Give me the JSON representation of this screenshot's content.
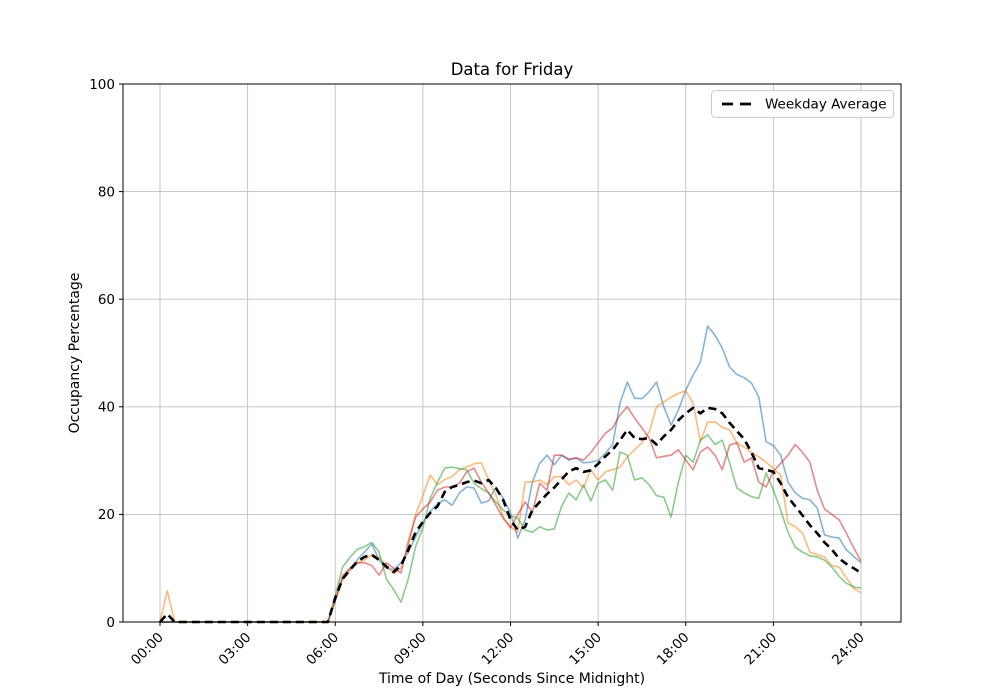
{
  "chart_data": {
    "type": "line",
    "title": "Data for Friday",
    "xlabel": "Time of Day (Seconds Since Midnight)",
    "ylabel": "Occupancy Percentage",
    "grid": true,
    "grid_color": "#c0c0c0",
    "spine_color": "#000000",
    "background_color": "#ffffff",
    "xlim_hours": [
      0,
      24
    ],
    "ylim": [
      0,
      100
    ],
    "y_ticks": [
      0,
      20,
      40,
      60,
      80,
      100
    ],
    "x_tick_hours": [
      0,
      3,
      6,
      9,
      12,
      15,
      18,
      21,
      24
    ],
    "x_tick_labels": [
      "00:00",
      "03:00",
      "06:00",
      "09:00",
      "12:00",
      "15:00",
      "18:00",
      "21:00",
      "24:00"
    ],
    "x_tick_label_rotation_deg": 45,
    "legend": {
      "position": "upper right",
      "entries": [
        {
          "label": "Weekday Average",
          "line_style": "dashed",
          "line_color": "#000000"
        }
      ]
    },
    "sample_interval_hours": 0.25,
    "series": [
      {
        "name": "friday-series-blue",
        "color": "#1f77b4",
        "opacity": 0.55,
        "width": 1.6,
        "dash": "",
        "values": [
          0,
          0,
          0,
          0,
          0,
          0,
          0,
          0,
          0,
          0,
          0,
          0,
          0,
          0,
          0,
          0,
          0,
          0,
          0,
          0,
          0,
          0,
          0,
          0,
          4.0,
          8.2,
          9.8,
          11.5,
          13.0,
          14.5,
          11.5,
          10.0,
          9.7,
          11.0,
          13.0,
          15.8,
          18.5,
          20.5,
          22.0,
          22.7,
          21.7,
          24.0,
          25.1,
          24.9,
          22.1,
          22.5,
          25.1,
          23.0,
          20.3,
          15.6,
          19.0,
          26.0,
          29.5,
          31.0,
          29.2,
          31.0,
          30.1,
          30.5,
          29.6,
          29.7,
          30.0,
          31.4,
          33.0,
          40.7,
          44.6,
          41.6,
          41.5,
          42.8,
          44.6,
          40.0,
          36.6,
          39.4,
          43.1,
          45.9,
          48.3,
          55.0,
          53.3,
          50.9,
          47.4,
          46.0,
          45.4,
          44.4,
          41.8,
          33.5,
          32.8,
          31.0,
          26.0,
          24.0,
          23.0,
          22.7,
          21.2,
          16.2,
          15.8,
          15.6,
          13.4,
          12.2,
          11.0
        ]
      },
      {
        "name": "friday-series-orange",
        "color": "#ff7f0e",
        "opacity": 0.55,
        "width": 1.6,
        "dash": "",
        "values": [
          0,
          5.8,
          0,
          0,
          0,
          0,
          0,
          0,
          0,
          0,
          0,
          0,
          0,
          0,
          0,
          0,
          0,
          0,
          0,
          0,
          0,
          0,
          0,
          0,
          4.2,
          8.0,
          9.5,
          11.0,
          11.5,
          12.5,
          12.0,
          10.5,
          9.0,
          10.0,
          14.0,
          20.0,
          23.5,
          27.3,
          25.5,
          26.5,
          27.0,
          28.3,
          28.8,
          29.4,
          29.6,
          26.4,
          23.6,
          19.5,
          17.7,
          16.7,
          26.0,
          26.0,
          26.4,
          25.5,
          27.0,
          27.0,
          25.5,
          26.4,
          24.9,
          28.3,
          26.4,
          27.9,
          28.3,
          28.8,
          30.7,
          32.0,
          33.3,
          35.3,
          40.0,
          40.9,
          41.8,
          42.5,
          43.0,
          40.7,
          33.5,
          37.2,
          37.2,
          36.2,
          35.7,
          33.3,
          32.5,
          31.5,
          30.7,
          29.7,
          28.5,
          27.3,
          18.4,
          17.7,
          16.5,
          13.0,
          12.5,
          12.1,
          10.5,
          10.2,
          8.2,
          6.3,
          5.4
        ]
      },
      {
        "name": "friday-series-green",
        "color": "#2ca02c",
        "opacity": 0.55,
        "width": 1.6,
        "dash": "",
        "values": [
          0,
          0,
          0,
          0,
          0,
          0,
          0,
          0,
          0,
          0,
          0,
          0,
          0,
          0,
          0,
          0,
          0,
          0,
          0,
          0,
          0,
          0,
          0,
          0,
          5.0,
          10.2,
          12.0,
          13.5,
          14.0,
          14.8,
          13.0,
          8.0,
          6.0,
          3.7,
          8.0,
          14.0,
          17.5,
          23.0,
          26.0,
          28.6,
          28.8,
          28.5,
          28.3,
          25.8,
          24.8,
          24.0,
          22.3,
          20.8,
          19.8,
          19.3,
          17.1,
          16.7,
          17.7,
          17.1,
          17.3,
          21.5,
          24.0,
          22.7,
          25.5,
          22.5,
          25.8,
          26.4,
          24.5,
          31.6,
          31.0,
          26.4,
          26.8,
          25.5,
          23.5,
          23.2,
          19.5,
          26.0,
          31.0,
          29.7,
          33.8,
          34.8,
          33.0,
          33.8,
          29.6,
          24.9,
          24.0,
          23.3,
          23.0,
          27.7,
          24.5,
          20.8,
          16.7,
          13.9,
          13.0,
          12.3,
          12.1,
          11.5,
          10.2,
          8.5,
          7.2,
          6.5,
          6.3
        ]
      },
      {
        "name": "friday-series-red",
        "color": "#d62728",
        "opacity": 0.55,
        "width": 1.6,
        "dash": "",
        "values": [
          0,
          0,
          0,
          0,
          0,
          0,
          0,
          0,
          0,
          0,
          0,
          0,
          0,
          0,
          0,
          0,
          0,
          0,
          0,
          0,
          0,
          0,
          0,
          0,
          4.0,
          8.6,
          10.0,
          11.0,
          11.0,
          10.5,
          8.7,
          11.0,
          10.0,
          9.1,
          15.0,
          19.5,
          21.0,
          22.3,
          24.5,
          25.1,
          25.1,
          25.8,
          27.9,
          28.6,
          26.0,
          24.0,
          21.7,
          19.3,
          17.5,
          20.0,
          22.3,
          20.4,
          25.8,
          24.5,
          31.0,
          31.0,
          30.3,
          30.5,
          30.1,
          31.5,
          33.3,
          35.1,
          36.1,
          38.5,
          40.0,
          37.9,
          36.1,
          34.2,
          30.5,
          30.8,
          31.0,
          32.0,
          30.1,
          28.3,
          31.6,
          32.5,
          31.0,
          28.3,
          32.9,
          33.3,
          29.7,
          30.5,
          26.0,
          25.1,
          28.0,
          29.5,
          31.0,
          33.0,
          31.5,
          29.7,
          24.5,
          21.0,
          20.0,
          19.0,
          16.5,
          13.8,
          11.3
        ]
      },
      {
        "name": "weekday-average",
        "color": "#000000",
        "opacity": 1,
        "width": 2.6,
        "dash": "8 5",
        "values": [
          0,
          1.5,
          0,
          0,
          0,
          0,
          0,
          0,
          0,
          0,
          0,
          0,
          0,
          0,
          0,
          0,
          0,
          0,
          0,
          0,
          0,
          0,
          0,
          0,
          4.5,
          8.0,
          9.7,
          11.2,
          12.1,
          12.5,
          11.5,
          10.3,
          9.3,
          10.5,
          13.4,
          16.7,
          18.6,
          20.3,
          21.5,
          24.2,
          25.1,
          25.5,
          26.0,
          26.3,
          25.8,
          26.4,
          24.9,
          22.7,
          19.0,
          17.1,
          17.7,
          20.8,
          22.3,
          23.8,
          25.0,
          26.5,
          28.0,
          28.6,
          27.9,
          28.2,
          29.4,
          30.8,
          32.0,
          33.8,
          35.7,
          34.2,
          34.0,
          34.2,
          33.0,
          34.5,
          35.7,
          37.5,
          38.8,
          39.8,
          38.8,
          39.8,
          39.6,
          38.8,
          37.0,
          35.5,
          34.0,
          31.5,
          28.6,
          28.3,
          27.9,
          25.8,
          23.2,
          21.5,
          19.8,
          18.0,
          16.5,
          14.8,
          13.5,
          11.8,
          10.8,
          10.0,
          9.1
        ]
      }
    ]
  }
}
